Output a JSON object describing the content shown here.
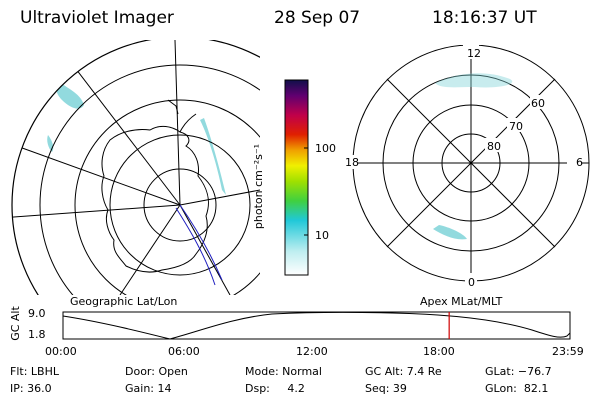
{
  "header": {
    "title": "Ultraviolet Imager",
    "date": "28 Sep 07",
    "time": "18:16:37 UT"
  },
  "colorbar": {
    "unit_label": "photon cm⁻²s⁻¹",
    "ticks": [
      "100",
      "10"
    ]
  },
  "polar_plot": {
    "labels": [
      "12",
      "60",
      "70",
      "80",
      "18",
      "6",
      "0"
    ]
  },
  "map_labels": {
    "left": "Geographic Lat/Lon",
    "right": "Apex MLat/MLT"
  },
  "altitude_plot": {
    "ylabel": "GC Alt",
    "yticks": [
      "9.0",
      "1.8"
    ],
    "xticks": [
      "00:00",
      "06:00",
      "12:00",
      "18:00",
      "23:59"
    ],
    "current_time_hours": 18.28,
    "marker_color": "#d00000"
  },
  "status": {
    "flt": "Flt: LBHL",
    "door": "Door: Open",
    "mode": "Mode: Normal",
    "gc_alt": "GC Alt: 7.4 Re",
    "glat": "GLat: −76.7",
    "ip": "IP: 36.0",
    "gain": "Gain: 14",
    "dsp": "Dsp:     4.2",
    "seq": "Seq: 39",
    "glon": "GLon:  82.1"
  }
}
